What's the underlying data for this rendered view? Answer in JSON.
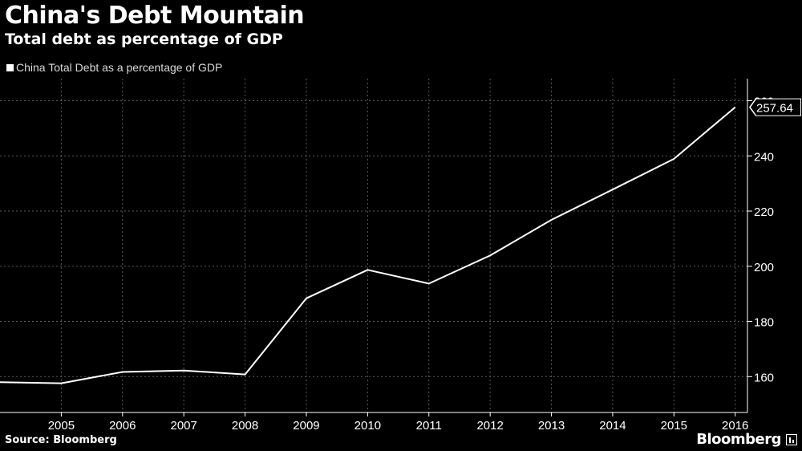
{
  "header": {
    "title": "China's Debt Mountain",
    "subtitle": "Total debt as percentage of GDP"
  },
  "footer": {
    "source": "Source: Bloomberg",
    "brand": "Bloomberg"
  },
  "colors": {
    "background": "#000000",
    "line": "#ffffff",
    "grid": "#5a5a5a",
    "text": "#ffffff"
  },
  "chart_data": {
    "type": "line",
    "title": "China's Debt Mountain",
    "subtitle": "Total debt as percentage of GDP",
    "xlabel": "",
    "ylabel": "",
    "legend_position": "top-left",
    "grid": true,
    "x_ticks": [
      "2005",
      "2006",
      "2007",
      "2008",
      "2009",
      "2010",
      "2011",
      "2012",
      "2013",
      "2014",
      "2015",
      "2016"
    ],
    "y_ticks": [
      160,
      180,
      200,
      220,
      240,
      260
    ],
    "xlim": [
      2004.0,
      2016.2
    ],
    "ylim": [
      147,
      268
    ],
    "series": [
      {
        "name": "China Total Debt as a percentage of GDP",
        "x": [
          2004.0,
          2005.0,
          2006.0,
          2007.0,
          2008.0,
          2009.0,
          2010.0,
          2011.0,
          2012.0,
          2013.0,
          2014.0,
          2015.0,
          2016.0
        ],
        "values": [
          158.0,
          157.6,
          161.7,
          162.2,
          160.8,
          188.4,
          198.7,
          193.7,
          203.9,
          216.8,
          227.8,
          238.9,
          257.64
        ]
      }
    ],
    "last_value_label": "257.64"
  }
}
